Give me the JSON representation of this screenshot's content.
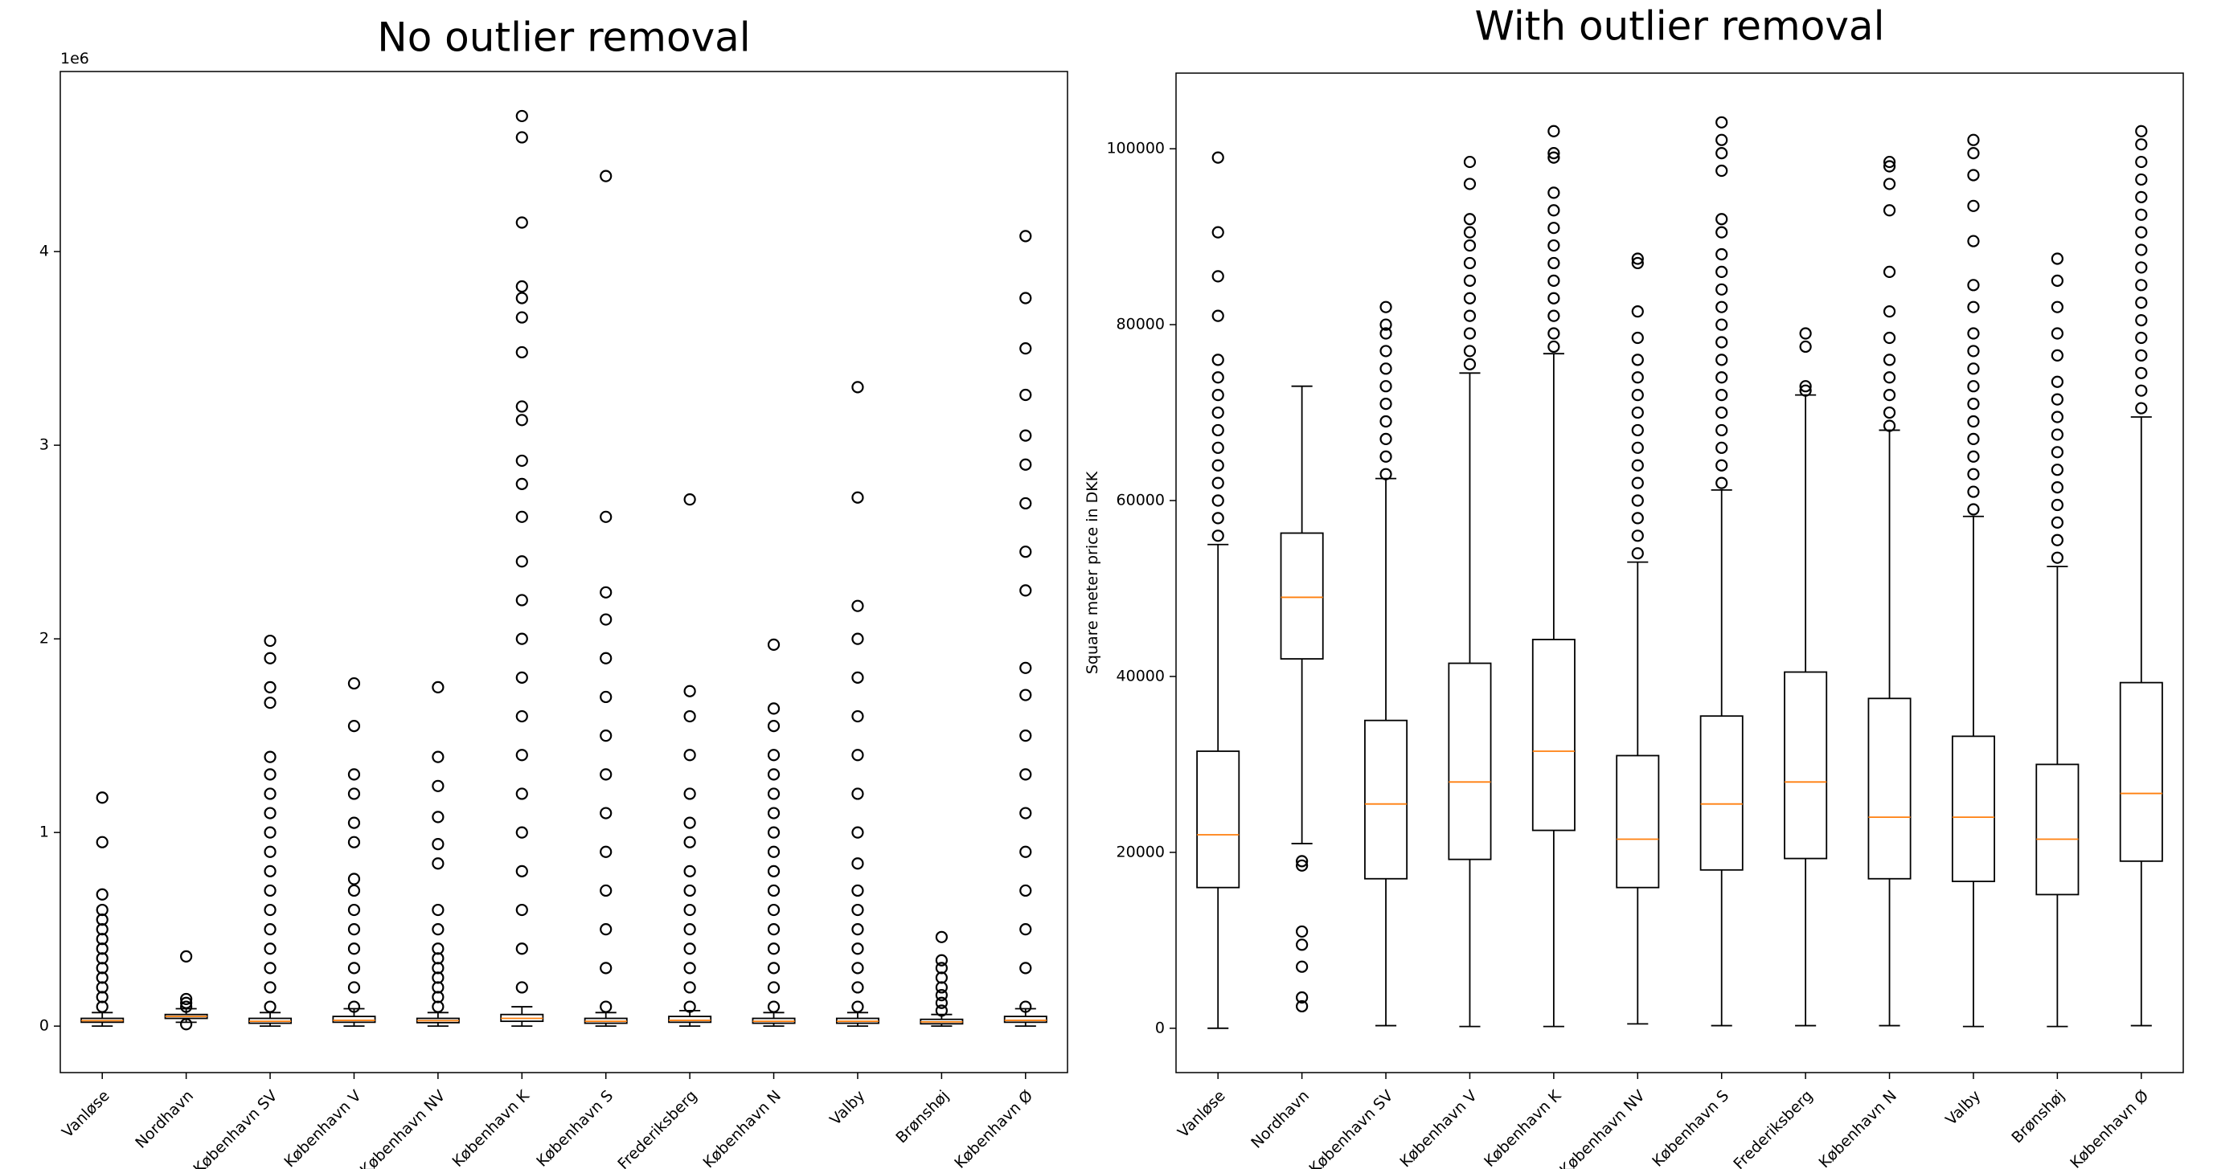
{
  "chart_data": [
    {
      "type": "box",
      "title": "No outlier removal",
      "offset_label": "1e6",
      "categories": [
        "Vanløse",
        "Nordhavn",
        "København SV",
        "København V",
        "København NV",
        "København K",
        "København S",
        "Frederiksberg",
        "København N",
        "Valby",
        "Brønshøj",
        "København Ø"
      ],
      "ylim": [
        -0.24,
        4.93
      ],
      "yticks": [
        0,
        1,
        2,
        3,
        4
      ],
      "color": "#000000",
      "median_color": "#ff7f0e",
      "boxes": [
        {
          "whislo": 0,
          "q1": 0.02,
          "med": 0.028,
          "q3": 0.04,
          "whishi": 0.07,
          "fliers": [
            0.1,
            0.15,
            0.2,
            0.25,
            0.3,
            0.35,
            0.4,
            0.45,
            0.5,
            0.55,
            0.6,
            0.68,
            0.95,
            1.18
          ]
        },
        {
          "whislo": 0.02,
          "q1": 0.04,
          "med": 0.05,
          "q3": 0.06,
          "whishi": 0.09,
          "fliers": [
            0.01,
            0.1,
            0.12,
            0.14,
            0.36
          ]
        },
        {
          "whislo": 0,
          "q1": 0.015,
          "med": 0.025,
          "q3": 0.04,
          "whishi": 0.07,
          "fliers": [
            0.1,
            0.2,
            0.3,
            0.4,
            0.5,
            0.6,
            0.7,
            0.8,
            0.9,
            1.0,
            1.1,
            1.2,
            1.3,
            1.39,
            1.67,
            1.75,
            1.9,
            1.99
          ]
        },
        {
          "whislo": 0,
          "q1": 0.02,
          "med": 0.03,
          "q3": 0.05,
          "whishi": 0.09,
          "fliers": [
            0.1,
            0.2,
            0.3,
            0.4,
            0.5,
            0.6,
            0.7,
            0.76,
            0.95,
            1.05,
            1.2,
            1.3,
            1.55,
            1.77
          ]
        },
        {
          "whislo": 0,
          "q1": 0.018,
          "med": 0.028,
          "q3": 0.04,
          "whishi": 0.07,
          "fliers": [
            0.1,
            0.15,
            0.2,
            0.25,
            0.3,
            0.35,
            0.4,
            0.5,
            0.6,
            0.84,
            0.94,
            1.08,
            1.24,
            1.39,
            1.75
          ]
        },
        {
          "whislo": 0,
          "q1": 0.025,
          "med": 0.04,
          "q3": 0.06,
          "whishi": 0.1,
          "fliers": [
            0.2,
            0.4,
            0.6,
            0.8,
            1.0,
            1.2,
            1.4,
            1.6,
            1.8,
            2.0,
            2.2,
            2.4,
            2.63,
            2.8,
            2.92,
            3.13,
            3.2,
            3.48,
            3.66,
            3.76,
            3.82,
            4.15,
            4.59,
            4.7
          ]
        },
        {
          "whislo": 0,
          "q1": 0.015,
          "med": 0.025,
          "q3": 0.04,
          "whishi": 0.07,
          "fliers": [
            0.1,
            0.3,
            0.5,
            0.7,
            0.9,
            1.1,
            1.3,
            1.5,
            1.7,
            1.9,
            2.1,
            2.24,
            2.63,
            4.39
          ]
        },
        {
          "whislo": 0,
          "q1": 0.02,
          "med": 0.03,
          "q3": 0.05,
          "whishi": 0.08,
          "fliers": [
            0.1,
            0.2,
            0.3,
            0.4,
            0.5,
            0.6,
            0.7,
            0.8,
            0.95,
            1.05,
            1.2,
            1.4,
            1.6,
            1.73,
            2.72
          ]
        },
        {
          "whislo": 0,
          "q1": 0.015,
          "med": 0.025,
          "q3": 0.04,
          "whishi": 0.07,
          "fliers": [
            0.1,
            0.2,
            0.3,
            0.4,
            0.5,
            0.6,
            0.7,
            0.8,
            0.9,
            1.0,
            1.1,
            1.2,
            1.3,
            1.4,
            1.55,
            1.64,
            1.97
          ]
        },
        {
          "whislo": 0,
          "q1": 0.015,
          "med": 0.025,
          "q3": 0.04,
          "whishi": 0.07,
          "fliers": [
            0.1,
            0.2,
            0.3,
            0.4,
            0.5,
            0.6,
            0.7,
            0.84,
            1.0,
            1.2,
            1.4,
            1.6,
            1.8,
            2.0,
            2.17,
            2.73,
            3.3
          ]
        },
        {
          "whislo": 0,
          "q1": 0.012,
          "med": 0.022,
          "q3": 0.035,
          "whishi": 0.06,
          "fliers": [
            0.08,
            0.12,
            0.16,
            0.2,
            0.25,
            0.3,
            0.34,
            0.46
          ]
        },
        {
          "whislo": 0,
          "q1": 0.02,
          "med": 0.03,
          "q3": 0.05,
          "whishi": 0.09,
          "fliers": [
            0.1,
            0.3,
            0.5,
            0.7,
            0.9,
            1.1,
            1.3,
            1.5,
            1.71,
            1.85,
            2.25,
            2.45,
            2.7,
            2.9,
            3.05,
            3.26,
            3.5,
            3.76,
            4.08
          ]
        }
      ]
    },
    {
      "type": "box",
      "title": "With outlier removal",
      "ylabel": "Square meter price in DKK",
      "categories": [
        "Vanløse",
        "Nordhavn",
        "København SV",
        "København V",
        "København K",
        "København NV",
        "København S",
        "Frederiksberg",
        "København N",
        "Valby",
        "Brønshøj",
        "København Ø"
      ],
      "ylim": [
        -5040,
        108600
      ],
      "yticks": [
        0,
        20000,
        40000,
        60000,
        80000,
        100000
      ],
      "color": "#000000",
      "median_color": "#ff7f0e",
      "boxes": [
        {
          "whislo": 0,
          "q1": 16000,
          "med": 22000,
          "q3": 31500,
          "whishi": 55000,
          "fliers": [
            56000,
            58000,
            60000,
            62000,
            64000,
            66000,
            68000,
            70000,
            72000,
            74000,
            76000,
            81000,
            85500,
            90500,
            99000
          ]
        },
        {
          "whislo": 21000,
          "q1": 42000,
          "med": 49000,
          "q3": 56300,
          "whishi": 73000,
          "fliers": [
            2500,
            3500,
            7000,
            9500,
            11000,
            18500,
            19000
          ]
        },
        {
          "whislo": 300,
          "q1": 17000,
          "med": 25500,
          "q3": 35000,
          "whishi": 62500,
          "fliers": [
            63000,
            65000,
            67000,
            69000,
            71000,
            73000,
            75000,
            77000,
            79000,
            80000,
            82000
          ]
        },
        {
          "whislo": 200,
          "q1": 19200,
          "med": 28000,
          "q3": 41500,
          "whishi": 74500,
          "fliers": [
            75500,
            77000,
            79000,
            81000,
            83000,
            85000,
            87000,
            89000,
            90500,
            92000,
            96000,
            98500
          ]
        },
        {
          "whislo": 200,
          "q1": 22500,
          "med": 31500,
          "q3": 44200,
          "whishi": 76700,
          "fliers": [
            77500,
            79000,
            81000,
            83000,
            85000,
            87000,
            89000,
            91000,
            93000,
            95000,
            99000,
            99500,
            102000
          ]
        },
        {
          "whislo": 500,
          "q1": 16000,
          "med": 21500,
          "q3": 31000,
          "whishi": 53000,
          "fliers": [
            54000,
            56000,
            58000,
            60000,
            62000,
            64000,
            66000,
            68000,
            70000,
            72000,
            74000,
            76000,
            78500,
            81500,
            87000,
            87500
          ]
        },
        {
          "whislo": 300,
          "q1": 18000,
          "med": 25500,
          "q3": 35500,
          "whishi": 61200,
          "fliers": [
            62000,
            64000,
            66000,
            68000,
            70000,
            72000,
            74000,
            76000,
            78000,
            80000,
            82000,
            84000,
            86000,
            88000,
            90500,
            92000,
            97500,
            99500,
            101000,
            103000
          ]
        },
        {
          "whislo": 300,
          "q1": 19300,
          "med": 28000,
          "q3": 40500,
          "whishi": 72000,
          "fliers": [
            72500,
            73000,
            77500,
            79000
          ]
        },
        {
          "whislo": 300,
          "q1": 17000,
          "med": 24000,
          "q3": 37500,
          "whishi": 68000,
          "fliers": [
            68500,
            70000,
            72000,
            74000,
            76000,
            78500,
            81500,
            86000,
            93000,
            96000,
            98000,
            98500
          ]
        },
        {
          "whislo": 200,
          "q1": 16700,
          "med": 24000,
          "q3": 33200,
          "whishi": 58200,
          "fliers": [
            59000,
            61000,
            63000,
            65000,
            67000,
            69000,
            71000,
            73000,
            75000,
            77000,
            79000,
            82000,
            84500,
            89500,
            93500,
            97000,
            99500,
            101000
          ]
        },
        {
          "whislo": 200,
          "q1": 15200,
          "med": 21500,
          "q3": 30000,
          "whishi": 52500,
          "fliers": [
            53500,
            55500,
            57500,
            59500,
            61500,
            63500,
            65500,
            67500,
            69500,
            71500,
            73500,
            76500,
            79000,
            82000,
            85000,
            87500
          ]
        },
        {
          "whislo": 300,
          "q1": 19000,
          "med": 26700,
          "q3": 39300,
          "whishi": 69500,
          "fliers": [
            70500,
            72500,
            74500,
            76500,
            78500,
            80500,
            82500,
            84500,
            86500,
            88500,
            90500,
            92500,
            94500,
            96500,
            98500,
            100500,
            102000
          ]
        }
      ]
    }
  ]
}
